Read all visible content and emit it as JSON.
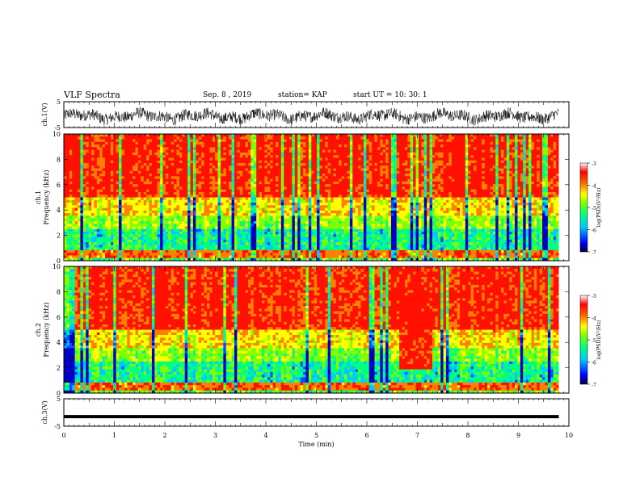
{
  "header": {
    "title": "VLF Spectra",
    "date": "Sep. 8 , 2019",
    "station": "station= KAP",
    "start_ut": "start UT =  10: 30: 1"
  },
  "chart_data": [
    {
      "type": "line",
      "name": "ch1-voltage",
      "ylabel": "ch.1(V)",
      "ylim": [
        -5,
        5
      ],
      "yticks": [
        "5",
        "-5"
      ],
      "xlim": [
        0,
        10
      ],
      "description_of_signal": "noisy waveform oscillating roughly between -4 and 3 V"
    },
    {
      "type": "heatmap",
      "name": "ch1-spectrogram",
      "ylabel": "ch.1\nFrequency (kHz)",
      "ylabel_lines": [
        "ch.1",
        "Frequency  (kHz)"
      ],
      "ylim": [
        0,
        10
      ],
      "yticks": [
        "0",
        "2",
        "4",
        "6",
        "8",
        "10"
      ],
      "xlim": [
        0,
        9.8
      ],
      "colorbar": {
        "label": "log(PSD)(V²/Hz)",
        "range": [
          -7,
          -3
        ],
        "ticks": [
          "-3",
          "-4",
          "-5",
          "-6",
          "-7"
        ]
      }
    },
    {
      "type": "heatmap",
      "name": "ch2-spectrogram",
      "ylabel_lines": [
        "ch.2",
        "Frequency  (kHz)"
      ],
      "ylim": [
        0,
        10
      ],
      "yticks": [
        "0",
        "2",
        "4",
        "6",
        "8",
        "10"
      ],
      "xlim": [
        0,
        9.8
      ],
      "colorbar": {
        "label": "log(PSD)(V²/Hz)",
        "range": [
          -7,
          -3
        ],
        "ticks": [
          "-3",
          "-4",
          "-5",
          "-6",
          "-7"
        ]
      }
    },
    {
      "type": "line",
      "name": "ch3-voltage",
      "ylabel": "ch.3(V)",
      "ylim": [
        -5,
        5
      ],
      "yticks": [
        "5",
        "-5"
      ],
      "x": [
        0,
        9.8
      ],
      "y": [
        -1.5,
        -1.5
      ]
    }
  ],
  "xaxis": {
    "label": "Time (min)",
    "ticks": [
      "0",
      "1",
      "2",
      "3",
      "4",
      "5",
      "6",
      "7",
      "8",
      "9",
      "10"
    ],
    "range": [
      0,
      10
    ]
  },
  "colors": {
    "cmap": [
      "#000080",
      "#0000ff",
      "#00c8ff",
      "#00ff80",
      "#80ff00",
      "#ffff00",
      "#ff8000",
      "#ff0000",
      "#ffffff"
    ]
  }
}
